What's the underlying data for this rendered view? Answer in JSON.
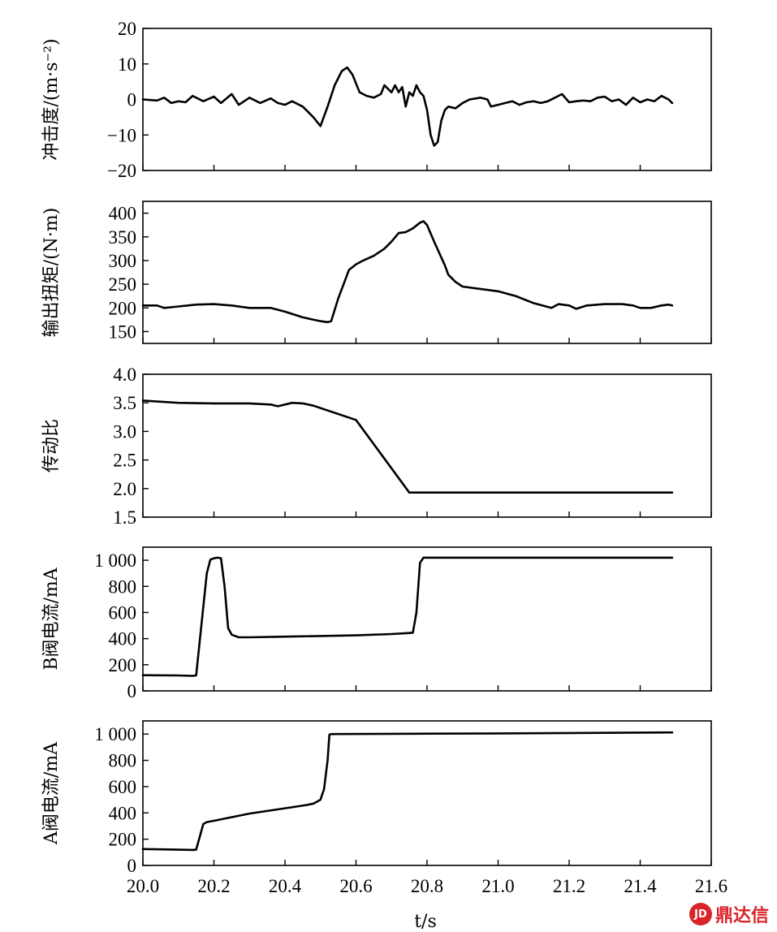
{
  "watermark": {
    "icon": "logo-icon",
    "badge": "JD",
    "text": "鼎达信",
    "color": "#d9242a"
  },
  "chart_data": {
    "type": "line",
    "x_axis": {
      "label": "t/s",
      "ticks": [
        20.0,
        20.2,
        20.4,
        20.6,
        20.8,
        21.0,
        21.2,
        21.4,
        21.6
      ],
      "tick_labels": [
        "20.0",
        "20.2",
        "20.4",
        "20.6",
        "20.8",
        "21.0",
        "21.2",
        "21.4",
        "21.6"
      ],
      "range": [
        20.0,
        21.6
      ]
    },
    "panels": [
      {
        "ylabel": "冲击度/(m·s⁻²)",
        "ylim": [
          -20,
          20
        ],
        "ticks": [
          20,
          10,
          0,
          -10,
          -20
        ],
        "tick_labels": [
          "20",
          "10",
          "0",
          "−10",
          "−20"
        ],
        "points": [
          [
            20.0,
            0
          ],
          [
            20.04,
            -0.3
          ],
          [
            20.06,
            0.5
          ],
          [
            20.08,
            -1
          ],
          [
            20.1,
            -0.5
          ],
          [
            20.12,
            -0.8
          ],
          [
            20.14,
            1
          ],
          [
            20.17,
            -0.5
          ],
          [
            20.2,
            0.8
          ],
          [
            20.22,
            -1
          ],
          [
            20.25,
            1.5
          ],
          [
            20.27,
            -1.5
          ],
          [
            20.3,
            0.5
          ],
          [
            20.33,
            -1
          ],
          [
            20.36,
            0.3
          ],
          [
            20.38,
            -1
          ],
          [
            20.4,
            -1.5
          ],
          [
            20.42,
            -0.5
          ],
          [
            20.45,
            -2
          ],
          [
            20.48,
            -5
          ],
          [
            20.5,
            -7.5
          ],
          [
            20.52,
            -2
          ],
          [
            20.54,
            4
          ],
          [
            20.56,
            8
          ],
          [
            20.575,
            9
          ],
          [
            20.59,
            7
          ],
          [
            20.61,
            2
          ],
          [
            20.63,
            1
          ],
          [
            20.65,
            0.5
          ],
          [
            20.67,
            1.5
          ],
          [
            20.68,
            4
          ],
          [
            20.69,
            3
          ],
          [
            20.7,
            2
          ],
          [
            20.71,
            4
          ],
          [
            20.72,
            2
          ],
          [
            20.73,
            3.5
          ],
          [
            20.74,
            -2
          ],
          [
            20.75,
            2
          ],
          [
            20.76,
            1
          ],
          [
            20.77,
            4
          ],
          [
            20.78,
            2
          ],
          [
            20.79,
            1
          ],
          [
            20.8,
            -3
          ],
          [
            20.81,
            -10
          ],
          [
            20.82,
            -13
          ],
          [
            20.83,
            -12
          ],
          [
            20.84,
            -6
          ],
          [
            20.85,
            -3
          ],
          [
            20.86,
            -2
          ],
          [
            20.88,
            -2.5
          ],
          [
            20.9,
            -1
          ],
          [
            20.92,
            0
          ],
          [
            20.95,
            0.5
          ],
          [
            20.97,
            0
          ],
          [
            20.98,
            -2
          ],
          [
            21.0,
            -1.5
          ],
          [
            21.02,
            -1
          ],
          [
            21.04,
            -0.5
          ],
          [
            21.06,
            -1.5
          ],
          [
            21.08,
            -0.8
          ],
          [
            21.1,
            -0.5
          ],
          [
            21.12,
            -1
          ],
          [
            21.14,
            -0.5
          ],
          [
            21.16,
            0.5
          ],
          [
            21.18,
            1.5
          ],
          [
            21.2,
            -0.8
          ],
          [
            21.22,
            -0.5
          ],
          [
            21.24,
            -0.3
          ],
          [
            21.26,
            -0.5
          ],
          [
            21.28,
            0.5
          ],
          [
            21.3,
            0.8
          ],
          [
            21.32,
            -0.5
          ],
          [
            21.34,
            0
          ],
          [
            21.36,
            -1.5
          ],
          [
            21.38,
            0.5
          ],
          [
            21.4,
            -0.8
          ],
          [
            21.42,
            0
          ],
          [
            21.44,
            -0.5
          ],
          [
            21.46,
            1
          ],
          [
            21.48,
            0
          ],
          [
            21.49,
            -1
          ]
        ]
      },
      {
        "ylabel": "输出扭矩/(N·m)",
        "ylim": [
          125,
          425
        ],
        "ticks": [
          400,
          350,
          300,
          250,
          200,
          150
        ],
        "tick_labels": [
          "400",
          "350",
          "300",
          "250",
          "200",
          "150"
        ],
        "points": [
          [
            20.0,
            205
          ],
          [
            20.04,
            205
          ],
          [
            20.06,
            200
          ],
          [
            20.1,
            203
          ],
          [
            20.15,
            207
          ],
          [
            20.2,
            208
          ],
          [
            20.25,
            205
          ],
          [
            20.3,
            200
          ],
          [
            20.33,
            200
          ],
          [
            20.36,
            200
          ],
          [
            20.4,
            192
          ],
          [
            20.45,
            180
          ],
          [
            20.5,
            172
          ],
          [
            20.52,
            170
          ],
          [
            20.53,
            172
          ],
          [
            20.55,
            220
          ],
          [
            20.57,
            260
          ],
          [
            20.58,
            280
          ],
          [
            20.6,
            292
          ],
          [
            20.62,
            300
          ],
          [
            20.65,
            310
          ],
          [
            20.68,
            325
          ],
          [
            20.7,
            340
          ],
          [
            20.72,
            358
          ],
          [
            20.74,
            360
          ],
          [
            20.76,
            368
          ],
          [
            20.78,
            380
          ],
          [
            20.79,
            383
          ],
          [
            20.8,
            375
          ],
          [
            20.82,
            340
          ],
          [
            20.85,
            290
          ],
          [
            20.86,
            270
          ],
          [
            20.88,
            255
          ],
          [
            20.9,
            245
          ],
          [
            20.95,
            240
          ],
          [
            21.0,
            235
          ],
          [
            21.05,
            225
          ],
          [
            21.1,
            210
          ],
          [
            21.15,
            200
          ],
          [
            21.17,
            208
          ],
          [
            21.2,
            205
          ],
          [
            21.22,
            198
          ],
          [
            21.25,
            205
          ],
          [
            21.3,
            208
          ],
          [
            21.35,
            208
          ],
          [
            21.38,
            205
          ],
          [
            21.4,
            200
          ],
          [
            21.43,
            200
          ],
          [
            21.46,
            205
          ],
          [
            21.48,
            207
          ],
          [
            21.49,
            205
          ]
        ]
      },
      {
        "ylabel": "传动比",
        "ylim": [
          1.5,
          4.0
        ],
        "ticks": [
          4.0,
          3.5,
          3.0,
          2.5,
          2.0,
          1.5
        ],
        "tick_labels": [
          "4.0",
          "3.5",
          "3.0",
          "2.5",
          "2.0",
          "1.5"
        ],
        "points": [
          [
            20.0,
            3.54
          ],
          [
            20.1,
            3.5
          ],
          [
            20.2,
            3.49
          ],
          [
            20.3,
            3.49
          ],
          [
            20.36,
            3.47
          ],
          [
            20.38,
            3.44
          ],
          [
            20.4,
            3.47
          ],
          [
            20.42,
            3.5
          ],
          [
            20.45,
            3.49
          ],
          [
            20.48,
            3.45
          ],
          [
            20.6,
            3.2
          ],
          [
            20.75,
            1.93
          ],
          [
            21.0,
            1.93
          ],
          [
            21.2,
            1.93
          ],
          [
            21.49,
            1.93
          ]
        ]
      },
      {
        "ylabel": "B阀电流/mA",
        "ylim": [
          0,
          1100
        ],
        "ticks": [
          1000,
          800,
          600,
          400,
          200,
          0
        ],
        "tick_labels": [
          "1 000",
          "800",
          "600",
          "400",
          "200",
          "0"
        ],
        "points": [
          [
            20.0,
            120
          ],
          [
            20.1,
            118
          ],
          [
            20.14,
            115
          ],
          [
            20.15,
            118
          ],
          [
            20.18,
            900
          ],
          [
            20.19,
            1005
          ],
          [
            20.2,
            1015
          ],
          [
            20.21,
            1020
          ],
          [
            20.22,
            1015
          ],
          [
            20.23,
            800
          ],
          [
            20.24,
            480
          ],
          [
            20.25,
            430
          ],
          [
            20.27,
            410
          ],
          [
            20.3,
            410
          ],
          [
            20.4,
            415
          ],
          [
            20.5,
            420
          ],
          [
            20.6,
            425
          ],
          [
            20.7,
            435
          ],
          [
            20.76,
            445
          ],
          [
            20.77,
            600
          ],
          [
            20.78,
            980
          ],
          [
            20.79,
            1020
          ],
          [
            21.0,
            1020
          ],
          [
            21.2,
            1020
          ],
          [
            21.49,
            1020
          ]
        ]
      },
      {
        "ylabel": "A阀电流/mA",
        "ylim": [
          0,
          1100
        ],
        "ticks": [
          1000,
          800,
          600,
          400,
          200,
          0
        ],
        "tick_labels": [
          "1 000",
          "800",
          "600",
          "400",
          "200",
          "0"
        ],
        "points": [
          [
            20.0,
            125
          ],
          [
            20.1,
            120
          ],
          [
            20.14,
            118
          ],
          [
            20.15,
            120
          ],
          [
            20.17,
            315
          ],
          [
            20.18,
            330
          ],
          [
            20.2,
            340
          ],
          [
            20.3,
            395
          ],
          [
            20.4,
            435
          ],
          [
            20.46,
            460
          ],
          [
            20.48,
            470
          ],
          [
            20.5,
            500
          ],
          [
            20.51,
            580
          ],
          [
            20.52,
            800
          ],
          [
            20.525,
            995
          ],
          [
            20.53,
            1000
          ],
          [
            20.8,
            1003
          ],
          [
            21.0,
            1005
          ],
          [
            21.2,
            1008
          ],
          [
            21.49,
            1012
          ]
        ]
      }
    ]
  }
}
